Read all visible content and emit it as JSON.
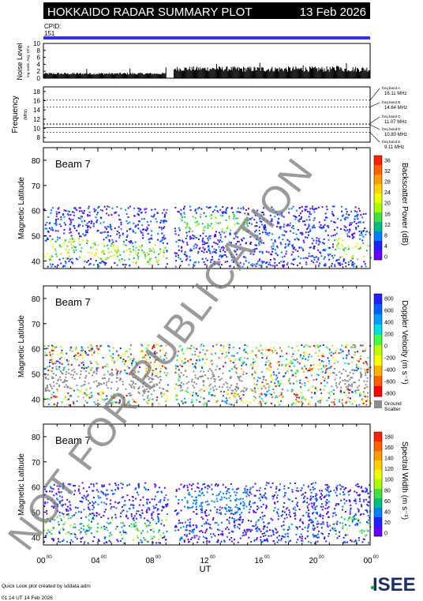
{
  "header": {
    "title": "HOKKAIDO RADAR SUMMARY PLOT",
    "date": "13 Feb 2026",
    "cpid_label": "CPID:",
    "cpid_value": "151"
  },
  "noise_panel": {
    "ylabel_main": "Noise Level",
    "ylabel_sub": "log scale, Avg. 10^x",
    "yticks": [
      "10",
      "8",
      "6",
      "4",
      "2",
      "0"
    ]
  },
  "freq_panel": {
    "ylabel_main": "Frequency",
    "ylabel_sub": "(MHz)",
    "yticks": [
      "18",
      "16",
      "14",
      "12",
      "10",
      "8"
    ],
    "bands": [
      {
        "name": "freq band A",
        "value": "16.11 MHz"
      },
      {
        "name": "freq band B",
        "value": "14.64 MHz"
      },
      {
        "name": "freq band C",
        "value": "11.07 MHz"
      },
      {
        "name": "freq band D",
        "value": "10.80 MHz"
      },
      {
        "name": "freq band E",
        "value": "9.11 MHz"
      }
    ]
  },
  "panels": [
    {
      "beam_label": "Beam  7",
      "ylabel": "Magnetic Latitude",
      "yticks": [
        "80",
        "70",
        "60",
        "50",
        "40"
      ],
      "colorbar_label": "Backscatter Power (dB)",
      "colorbar_ticks": [
        "36",
        "32",
        "28",
        "24",
        "20",
        "16",
        "12",
        "8",
        "4",
        "0"
      ],
      "colors": [
        "#ff2000",
        "#ff6000",
        "#ff9a00",
        "#ffd200",
        "#f0ff00",
        "#a8ff00",
        "#40e040",
        "#00c080",
        "#0080ff",
        "#2020ff",
        "#6600ff"
      ]
    },
    {
      "beam_label": "Beam  7",
      "ylabel": "Magnetic Latitude",
      "yticks": [
        "80",
        "70",
        "60",
        "50",
        "40"
      ],
      "colorbar_label": "Doppler Velocity (m s⁻¹)",
      "colorbar_ticks": [
        "800",
        "600",
        "400",
        "200",
        "0",
        "-200",
        "-400",
        "-600",
        "-800"
      ],
      "ground_label_1": "Ground",
      "ground_label_2": "Scatter",
      "colors": [
        "#2020ff",
        "#0060ff",
        "#00a0ff",
        "#00e0e0",
        "#40ff40",
        "#c0ff00",
        "#ffff00",
        "#ffb000",
        "#ff6000",
        "#ff0000"
      ]
    },
    {
      "beam_label": "Beam  7",
      "ylabel": "Magnetic Latitude",
      "yticks": [
        "80",
        "70",
        "60",
        "50",
        "40"
      ],
      "colorbar_label": "Spectral Width (m s⁻¹)",
      "colorbar_ticks": [
        "180",
        "160",
        "140",
        "120",
        "100",
        "80",
        "60",
        "40",
        "20",
        "0"
      ],
      "colors": [
        "#ff2000",
        "#ff6000",
        "#ff9a00",
        "#ffd200",
        "#f0ff00",
        "#a8ff00",
        "#40e040",
        "#00c080",
        "#0080ff",
        "#2020ff",
        "#6600ff"
      ]
    }
  ],
  "xaxis": {
    "ticks": [
      "00",
      "04",
      "08",
      "12",
      "16",
      "20",
      "00"
    ],
    "tick_sup": "00",
    "label": "UT"
  },
  "footer": {
    "line1": "Quick Look plot created by sddata.adm",
    "line2": "01:14 UT 14 Feb 2026",
    "logo_text": "ISEE"
  },
  "watermark": "NOT FOR PUBLICATION",
  "chart_data": [
    {
      "type": "line",
      "title": "Noise Level",
      "ylim": [
        0,
        10
      ],
      "ylabel": "Noise Level",
      "note": "log scale, Avg. 10^x"
    },
    {
      "type": "line",
      "title": "Frequency",
      "ylim": [
        8,
        18
      ],
      "ylabel": "Frequency (MHz)",
      "series": [
        {
          "name": "freq band A",
          "values": [
            16.11
          ]
        },
        {
          "name": "freq band B",
          "values": [
            14.64
          ]
        },
        {
          "name": "freq band C",
          "values": [
            11.07
          ]
        },
        {
          "name": "freq band D",
          "values": [
            10.8
          ]
        },
        {
          "name": "freq band E",
          "values": [
            9.11
          ]
        }
      ]
    },
    {
      "type": "heatmap",
      "title": "Beam  7",
      "ylabel": "Magnetic Latitude",
      "xlabel": "UT",
      "ylim": [
        37,
        85
      ],
      "zlabel": "Backscatter Power (dB)",
      "zlim": [
        0,
        40
      ]
    },
    {
      "type": "heatmap",
      "title": "Beam  7",
      "ylabel": "Magnetic Latitude",
      "xlabel": "UT",
      "ylim": [
        37,
        85
      ],
      "zlabel": "Doppler Velocity (m s⁻¹)",
      "zlim": [
        -900,
        900
      ]
    },
    {
      "type": "heatmap",
      "title": "Beam  7",
      "ylabel": "Magnetic Latitude",
      "xlabel": "UT",
      "ylim": [
        37,
        85
      ],
      "zlabel": "Spectral Width (m s⁻¹)",
      "zlim": [
        0,
        190
      ]
    }
  ]
}
